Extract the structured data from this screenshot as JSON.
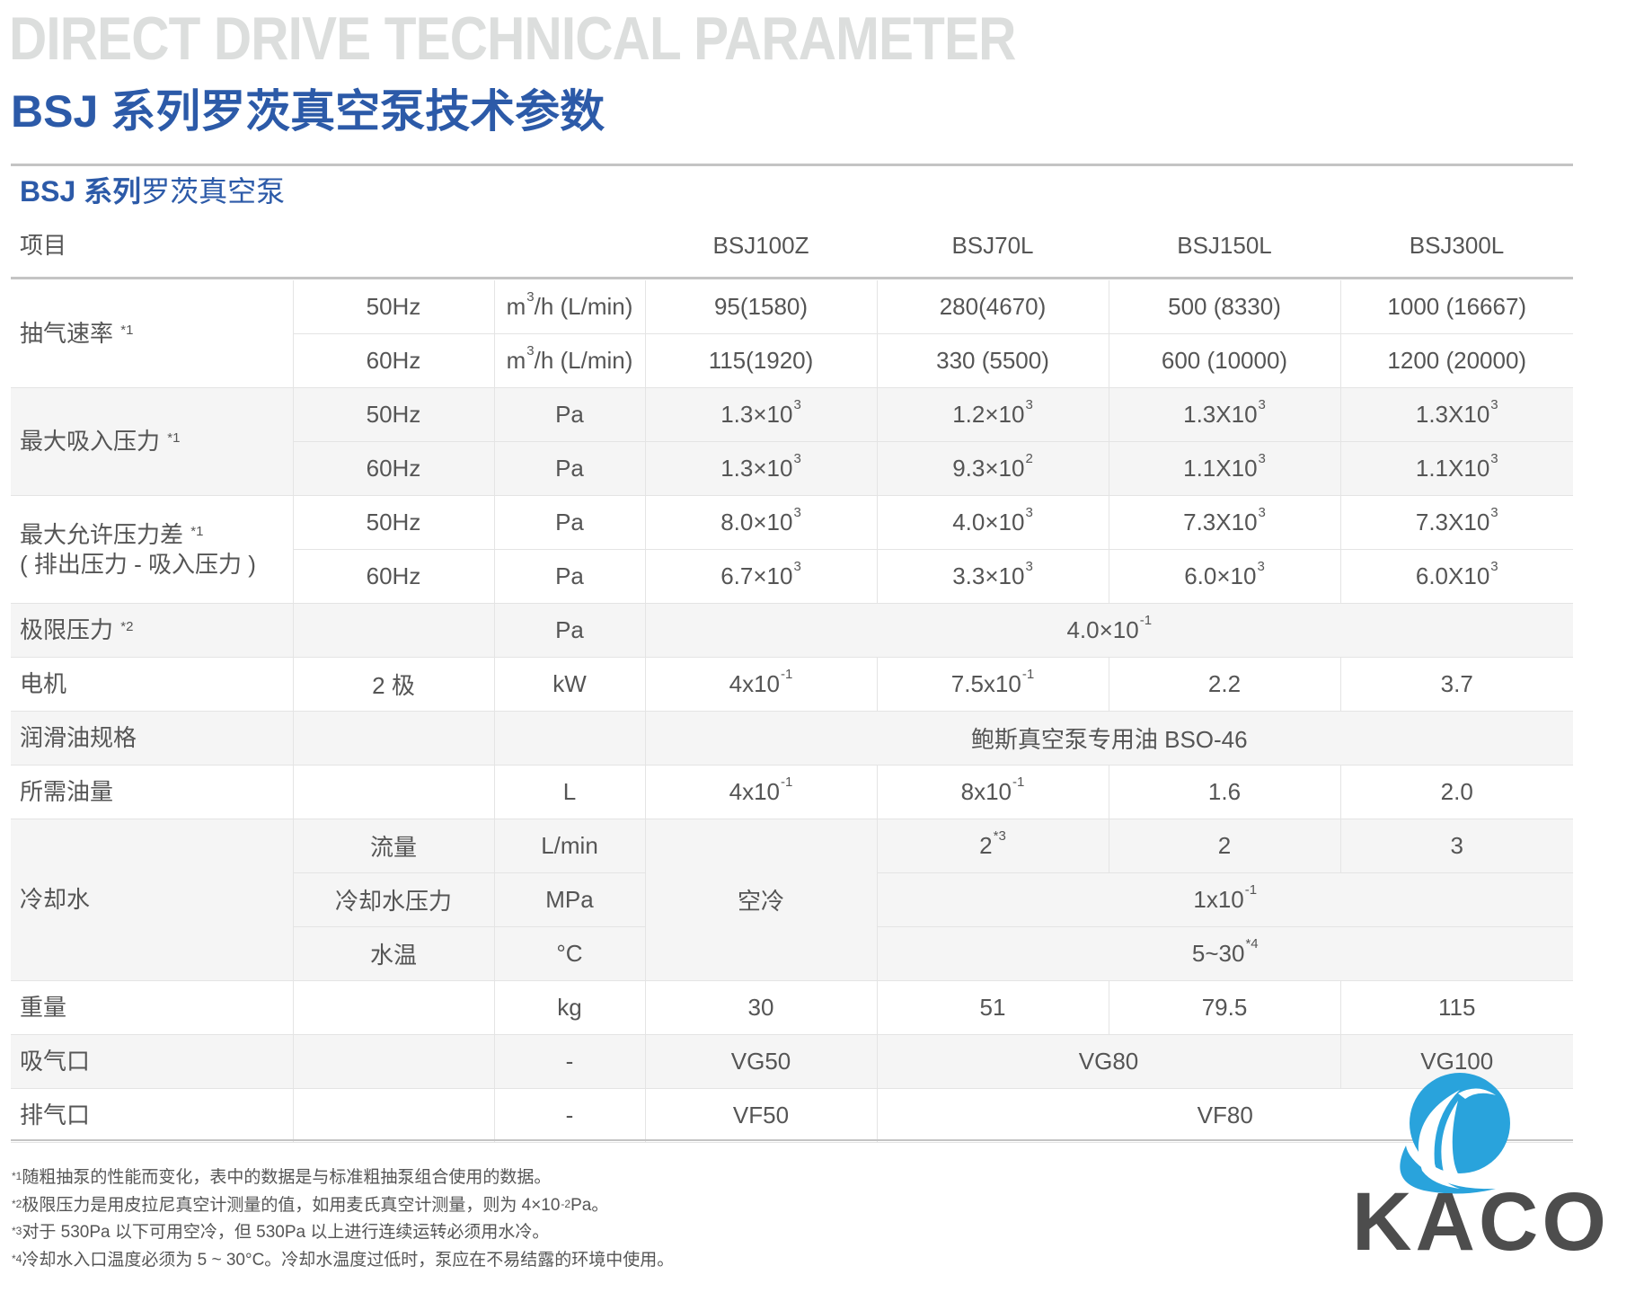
{
  "title_en": "DIRECT DRIVE TECHNICAL PARAMETER",
  "title_cn": "BSJ 系列罗茨真空泵技术参数",
  "subtitle": {
    "bold": "BSJ 系列",
    "normal": "罗茨真空泵"
  },
  "header": {
    "item": "项目",
    "models": [
      "BSJ100Z",
      "BSJ70L",
      "BSJ150L",
      "BSJ300L"
    ]
  },
  "rows": [
    {
      "shade": false,
      "cells": [
        {
          "t": "抽气速率 ",
          "sup": "*1",
          "lbl": true,
          "rs": 2
        },
        {
          "t": "50Hz"
        },
        {
          "t": "m",
          "sup": "3",
          "t2": "/h (L/min)"
        },
        {
          "t": "95(1580)"
        },
        {
          "t": "280(4670)"
        },
        {
          "t": "500 (8330)"
        },
        {
          "t": "1000 (16667)"
        }
      ]
    },
    {
      "shade": false,
      "cells": [
        {
          "t": "60Hz"
        },
        {
          "t": "m",
          "sup": "3",
          "t2": "/h (L/min)"
        },
        {
          "t": "115(1920)"
        },
        {
          "t": "330 (5500)"
        },
        {
          "t": "600 (10000)"
        },
        {
          "t": "1200 (20000)"
        }
      ]
    },
    {
      "shade": true,
      "cells": [
        {
          "t": "最大吸入压力 ",
          "sup": "*1",
          "lbl": true,
          "rs": 2
        },
        {
          "t": "50Hz"
        },
        {
          "t": "Pa"
        },
        {
          "t": "1.3×10",
          "sup": "3"
        },
        {
          "t": "1.2×10",
          "sup": "3"
        },
        {
          "t": "1.3X10",
          "sup": "3"
        },
        {
          "t": "1.3X10",
          "sup": "3"
        }
      ]
    },
    {
      "shade": true,
      "cells": [
        {
          "t": "60Hz"
        },
        {
          "t": "Pa"
        },
        {
          "t": "1.3×10",
          "sup": "3"
        },
        {
          "t": "9.3×10",
          "sup": "2"
        },
        {
          "t": "1.1X10",
          "sup": "3"
        },
        {
          "t": "1.1X10",
          "sup": "3"
        }
      ]
    },
    {
      "shade": false,
      "cells": [
        {
          "t": "最大允许压力差 ",
          "sup": "*1",
          "line2": "( 排出压力 - 吸入压力 )",
          "lbl": true,
          "rs": 2
        },
        {
          "t": "50Hz"
        },
        {
          "t": "Pa"
        },
        {
          "t": "8.0×10",
          "sup": "3"
        },
        {
          "t": "4.0×10",
          "sup": "3"
        },
        {
          "t": "7.3X10",
          "sup": "3"
        },
        {
          "t": "7.3X10",
          "sup": "3"
        }
      ]
    },
    {
      "shade": false,
      "cells": [
        {
          "t": "60Hz"
        },
        {
          "t": "Pa"
        },
        {
          "t": "6.7×10",
          "sup": "3"
        },
        {
          "t": "3.3×10",
          "sup": "3"
        },
        {
          "t": "6.0×10",
          "sup": "3"
        },
        {
          "t": "6.0X10",
          "sup": "3"
        }
      ]
    },
    {
      "shade": true,
      "cells": [
        {
          "t": "极限压力 ",
          "sup": "*2",
          "lbl": true
        },
        {
          "t": ""
        },
        {
          "t": "Pa"
        },
        {
          "t": "4.0×10",
          "sup": "-1",
          "cs": 4
        }
      ]
    },
    {
      "shade": false,
      "cells": [
        {
          "t": "电机",
          "lbl": true
        },
        {
          "t": "2 极"
        },
        {
          "t": "kW"
        },
        {
          "t": "4x10",
          "sup": "-1"
        },
        {
          "t": "7.5x10",
          "sup": "-1"
        },
        {
          "t": "2.2"
        },
        {
          "t": "3.7"
        }
      ]
    },
    {
      "shade": true,
      "cells": [
        {
          "t": "润滑油规格",
          "lbl": true
        },
        {
          "t": ""
        },
        {
          "t": ""
        },
        {
          "t": "鲍斯真空泵专用油 BSO-46",
          "cs": 4
        }
      ]
    },
    {
      "shade": false,
      "cells": [
        {
          "t": "所需油量",
          "lbl": true
        },
        {
          "t": ""
        },
        {
          "t": "L"
        },
        {
          "t": "4x10",
          "sup": "-1"
        },
        {
          "t": "8x10",
          "sup": "-1"
        },
        {
          "t": "1.6"
        },
        {
          "t": "2.0"
        }
      ]
    },
    {
      "shade": true,
      "cells": [
        {
          "t": "冷却水",
          "lbl": true,
          "rs": 3
        },
        {
          "t": "流量"
        },
        {
          "t": "L/min"
        },
        {
          "t": "空冷",
          "rs": 3
        },
        {
          "t": "2",
          "sup": "*3"
        },
        {
          "t": "2"
        },
        {
          "t": "3"
        }
      ]
    },
    {
      "shade": true,
      "cells": [
        {
          "t": "冷却水压力"
        },
        {
          "t": "MPa"
        },
        {
          "t": "1x10",
          "sup": "-1",
          "cs": 3
        }
      ]
    },
    {
      "shade": true,
      "cells": [
        {
          "t": "水温"
        },
        {
          "t": "°C"
        },
        {
          "t": "5~30",
          "sup": "*4",
          "cs": 3
        }
      ]
    },
    {
      "shade": false,
      "cells": [
        {
          "t": "重量",
          "lbl": true
        },
        {
          "t": ""
        },
        {
          "t": "kg"
        },
        {
          "t": "30"
        },
        {
          "t": "51"
        },
        {
          "t": "79.5"
        },
        {
          "t": "115"
        }
      ]
    },
    {
      "shade": true,
      "cells": [
        {
          "t": "吸气口",
          "lbl": true
        },
        {
          "t": ""
        },
        {
          "t": "-"
        },
        {
          "t": "VG50"
        },
        {
          "t": "VG80",
          "cs": 2
        },
        {
          "t": "VG100"
        }
      ]
    },
    {
      "shade": false,
      "cells": [
        {
          "t": "排气口",
          "lbl": true
        },
        {
          "t": ""
        },
        {
          "t": "-"
        },
        {
          "t": "VF50"
        },
        {
          "t": "VF80",
          "cs": 3
        }
      ]
    }
  ],
  "footnotes": [
    {
      "mark": "*1",
      "text": "随粗抽泵的性能而变化，表中的数据是与标准粗抽泵组合使用的数据。"
    },
    {
      "mark": "*2",
      "text": "极限压力是用皮拉尼真空计测量的值，如用麦氏真空计测量，则为 4×10",
      "sup": "-2",
      "text2": "Pa。"
    },
    {
      "mark": "*3",
      "text": "对于 530Pa 以下可用空冷，但 530Pa 以上进行连续运转必须用水冷。"
    },
    {
      "mark": "*4",
      "text": "冷却水入口温度必须为 5 ~ 30°C。冷却水温度过低时，泵应在不易结露的环境中使用。"
    }
  ],
  "logo": {
    "text": "KACO",
    "color": "#29a3dc"
  },
  "colors": {
    "title_blue": "#2c5aa8",
    "title_grey": "#dcdedd",
    "row_shade": "#f5f5f5"
  }
}
